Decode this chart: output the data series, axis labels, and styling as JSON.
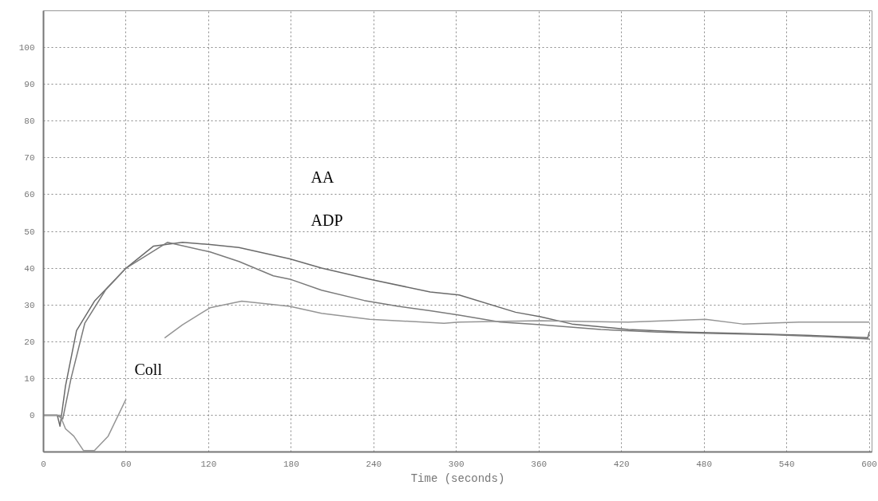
{
  "chart_data": {
    "type": "line",
    "xlabel": "Time (seconds)",
    "xlim": [
      0,
      602
    ],
    "ylim": [
      -10,
      110
    ],
    "xticks": [
      0,
      60,
      120,
      180,
      240,
      300,
      360,
      420,
      480,
      540,
      600
    ],
    "yticks": [
      0,
      10,
      20,
      30,
      40,
      50,
      60,
      70,
      80,
      90,
      100
    ],
    "grid": true,
    "line_style": "solid",
    "series": [
      {
        "color": "#6a6a6a",
        "x": [
          0,
          10,
          12,
          16,
          24,
          37,
          60,
          80,
          101,
          121,
          142,
          179,
          202,
          237,
          281,
          302,
          343,
          361,
          384,
          425,
          466,
          508,
          549,
          599,
          600
        ],
        "values": [
          0,
          0,
          -3,
          8,
          23,
          31,
          40,
          46,
          47,
          46.4,
          45.6,
          42.5,
          40,
          37,
          33.5,
          32.7,
          28,
          26.8,
          24.8,
          23.3,
          22.6,
          22.2,
          21.8,
          21.1,
          22.6
        ]
      },
      {
        "color": "#7a7a7a",
        "x": [
          0,
          10,
          14,
          20,
          30,
          45,
          60,
          90,
          121,
          142,
          167,
          179,
          202,
          233,
          258,
          281,
          302,
          332,
          361,
          405,
          446,
          487,
          528,
          570,
          600
        ],
        "values": [
          0,
          0,
          -1,
          10,
          25,
          34,
          40,
          47,
          44.4,
          41.8,
          37.9,
          37,
          34,
          31.2,
          29.6,
          28.4,
          27.2,
          25.3,
          24.6,
          23.3,
          22.6,
          22.2,
          21.9,
          21.3,
          20.7
        ]
      },
      {
        "color": "#959595",
        "x": [
          0,
          12,
          16,
          22,
          29,
          37,
          47,
          60,
          74,
          88,
          101,
          121,
          144,
          179,
          202,
          237,
          291,
          302,
          361,
          425,
          481,
          508,
          549,
          600
        ],
        "values": [
          0,
          0,
          -3.7,
          -5.7,
          -9.6,
          -9.6,
          -5.7,
          4.4,
          null,
          21,
          24.6,
          29.2,
          31,
          29.6,
          27.7,
          26.1,
          25,
          25.3,
          25.7,
          25.3,
          26.1,
          24.8,
          25.3,
          25.3
        ]
      }
    ],
    "annotations": [
      "AA",
      "ADP",
      "Coll"
    ]
  }
}
